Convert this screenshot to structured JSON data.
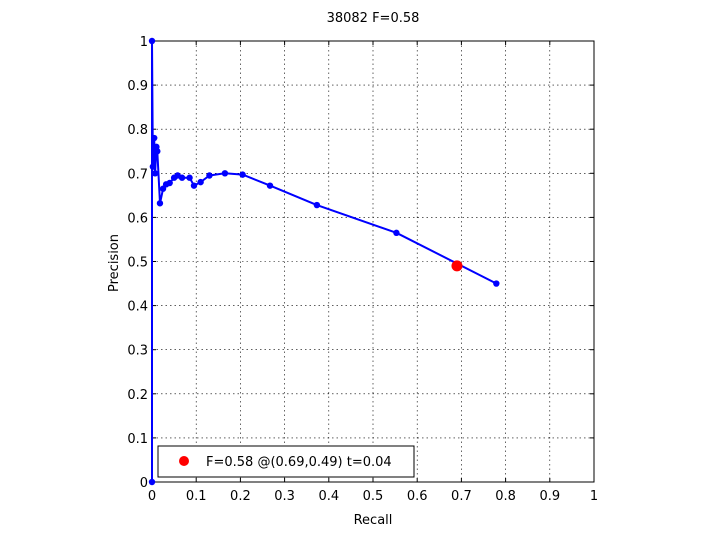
{
  "chart_data": {
    "type": "line",
    "title": "38082 F=0.58",
    "xlabel": "Recall",
    "ylabel": "Precision",
    "xlim": [
      0,
      1
    ],
    "ylim": [
      0,
      1
    ],
    "xticks": [
      0,
      0.1,
      0.2,
      0.3,
      0.4,
      0.5,
      0.6,
      0.7,
      0.8,
      0.9,
      1
    ],
    "yticks": [
      0,
      0.1,
      0.2,
      0.3,
      0.4,
      0.5,
      0.6,
      0.7,
      0.8,
      0.9,
      1
    ],
    "xtick_labels": [
      "0",
      "0.1",
      "0.2",
      "0.3",
      "0.4",
      "0.5",
      "0.6",
      "0.7",
      "0.8",
      "0.9",
      "1"
    ],
    "ytick_labels": [
      "0",
      "0.1",
      "0.2",
      "0.3",
      "0.4",
      "0.5",
      "0.6",
      "0.7",
      "0.8",
      "0.9",
      "1"
    ],
    "grid": true,
    "legend": {
      "position": "bottom-left",
      "entries": [
        {
          "label": "F=0.58 @(0.69,0.49) t=0.04",
          "color": "#ff0000"
        }
      ]
    },
    "series": [
      {
        "color": "#0000ff",
        "marker": "dot",
        "x": [
          0.0,
          0.0,
          0.002,
          0.005,
          0.007,
          0.01,
          0.012,
          0.018,
          0.025,
          0.032,
          0.04,
          0.05,
          0.058,
          0.068,
          0.085,
          0.095,
          0.11,
          0.13,
          0.165,
          0.205,
          0.267,
          0.373,
          0.553,
          0.779
        ],
        "y": [
          0.0,
          1.0,
          0.715,
          0.78,
          0.7,
          0.76,
          0.75,
          0.632,
          0.665,
          0.675,
          0.678,
          0.69,
          0.695,
          0.69,
          0.69,
          0.672,
          0.68,
          0.695,
          0.7,
          0.697,
          0.672,
          0.628,
          0.565,
          0.45
        ]
      }
    ],
    "highlight": {
      "x": 0.69,
      "y": 0.49,
      "color": "#ff0000"
    }
  }
}
